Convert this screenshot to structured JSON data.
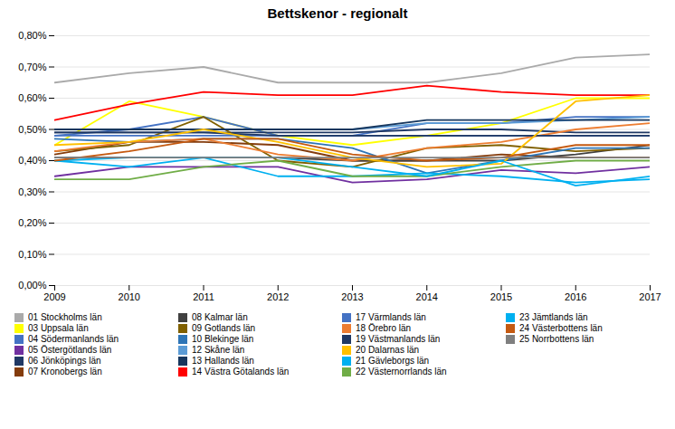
{
  "chart_data": {
    "type": "line",
    "title": "Bettskenor - regionalt",
    "x": [
      2009,
      2010,
      2011,
      2012,
      2013,
      2014,
      2015,
      2016,
      2017
    ],
    "xlim": [
      2009,
      2017
    ],
    "xticks": [
      2009,
      2010,
      2011,
      2012,
      2013,
      2014,
      2015,
      2016,
      2017
    ],
    "ylim": [
      0,
      0.8
    ],
    "yticks": [
      {
        "value": 0.0,
        "label": "0,00%"
      },
      {
        "value": 0.1,
        "label": "0,10%"
      },
      {
        "value": 0.2,
        "label": "0,20%"
      },
      {
        "value": 0.3,
        "label": "0,30%"
      },
      {
        "value": 0.4,
        "label": "0,40%"
      },
      {
        "value": 0.5,
        "label": "0,50%"
      },
      {
        "value": 0.6,
        "label": "0,60%"
      },
      {
        "value": 0.7,
        "label": "0,70%"
      },
      {
        "value": 0.8,
        "label": "0,80%"
      }
    ],
    "grid": true,
    "legend": "bottom",
    "series": [
      {
        "name": "01 Stockholms län",
        "color": "#aaaaaa",
        "values": [
          0.65,
          0.68,
          0.7,
          0.65,
          0.65,
          0.65,
          0.68,
          0.73,
          0.74
        ]
      },
      {
        "name": "03 Uppsala län",
        "color": "#ffff00",
        "values": [
          0.45,
          0.59,
          0.54,
          0.48,
          0.45,
          0.48,
          0.52,
          0.6,
          0.6
        ]
      },
      {
        "name": "04 Södermanlands län",
        "color": "#4472c4",
        "values": [
          0.48,
          0.5,
          0.54,
          0.48,
          0.48,
          0.52,
          0.52,
          0.54,
          0.54
        ]
      },
      {
        "name": "05 Östergötlands län",
        "color": "#7030a0",
        "values": [
          0.35,
          0.38,
          0.38,
          0.38,
          0.33,
          0.34,
          0.37,
          0.36,
          0.38
        ]
      },
      {
        "name": "06 Jönköpings län",
        "color": "#1f3864",
        "values": [
          0.49,
          0.49,
          0.49,
          0.49,
          0.49,
          0.5,
          0.5,
          0.49,
          0.49
        ]
      },
      {
        "name": "07 Kronobergs län",
        "color": "#843c0c",
        "values": [
          0.42,
          0.46,
          0.46,
          0.45,
          0.4,
          0.4,
          0.42,
          0.41,
          0.41
        ]
      },
      {
        "name": "08 Kalmar län",
        "color": "#404040",
        "values": [
          0.41,
          0.41,
          0.41,
          0.41,
          0.4,
          0.4,
          0.4,
          0.42,
          0.45
        ]
      },
      {
        "name": "09 Gotlands län",
        "color": "#806000",
        "values": [
          0.43,
          0.45,
          0.54,
          0.4,
          0.38,
          0.44,
          0.45,
          0.43,
          0.44
        ]
      },
      {
        "name": "10 Blekinge län",
        "color": "#2e75b6",
        "values": [
          0.47,
          0.46,
          0.47,
          0.47,
          0.44,
          0.36,
          0.4,
          0.44,
          0.44
        ]
      },
      {
        "name": "12 Skåne län",
        "color": "#5b9bd5",
        "values": [
          0.5,
          0.5,
          0.5,
          0.5,
          0.5,
          0.52,
          0.52,
          0.53,
          0.54
        ]
      },
      {
        "name": "13 Hallands län",
        "color": "#17375e",
        "values": [
          0.5,
          0.5,
          0.5,
          0.5,
          0.5,
          0.53,
          0.53,
          0.53,
          0.53
        ]
      },
      {
        "name": "14 Västra Götalands län",
        "color": "#ff0000",
        "values": [
          0.53,
          0.58,
          0.62,
          0.61,
          0.61,
          0.64,
          0.62,
          0.61,
          0.61
        ]
      },
      {
        "name": "17 Värmlands län",
        "color": "#4472c4",
        "values": [
          0.48,
          0.48,
          0.48,
          0.48,
          0.48,
          0.48,
          0.48,
          0.48,
          0.48
        ]
      },
      {
        "name": "18 Örebro län",
        "color": "#ed7d31",
        "values": [
          0.43,
          0.46,
          0.47,
          0.42,
          0.4,
          0.44,
          0.46,
          0.5,
          0.52
        ]
      },
      {
        "name": "19 Västmanlands län",
        "color": "#1f3864",
        "values": [
          0.49,
          0.49,
          0.49,
          0.48,
          0.48,
          0.48,
          0.48,
          0.48,
          0.48
        ]
      },
      {
        "name": "20 Dalarnas län",
        "color": "#ffc000",
        "values": [
          0.45,
          0.46,
          0.5,
          0.46,
          0.41,
          0.38,
          0.39,
          0.59,
          0.61
        ]
      },
      {
        "name": "21 Gävleborgs län",
        "color": "#00b0f0",
        "values": [
          0.4,
          0.38,
          0.41,
          0.35,
          0.35,
          0.36,
          0.35,
          0.33,
          0.34
        ]
      },
      {
        "name": "22 Västernorrlands län",
        "color": "#70ad47",
        "values": [
          0.34,
          0.34,
          0.38,
          0.4,
          0.35,
          0.35,
          0.38,
          0.4,
          0.4
        ]
      },
      {
        "name": "23 Jämtlands län",
        "color": "#00b0f0",
        "values": [
          0.4,
          0.41,
          0.41,
          0.41,
          0.38,
          0.35,
          0.4,
          0.32,
          0.35
        ]
      },
      {
        "name": "24 Västerbottens län",
        "color": "#c55a11",
        "values": [
          0.4,
          0.43,
          0.47,
          0.47,
          0.42,
          0.4,
          0.41,
          0.45,
          0.45
        ]
      },
      {
        "name": "25 Norrbottens län",
        "color": "#7f7f7f",
        "values": [
          0.41,
          0.41,
          0.41,
          0.41,
          0.41,
          0.41,
          0.41,
          0.41,
          0.41
        ]
      }
    ]
  }
}
